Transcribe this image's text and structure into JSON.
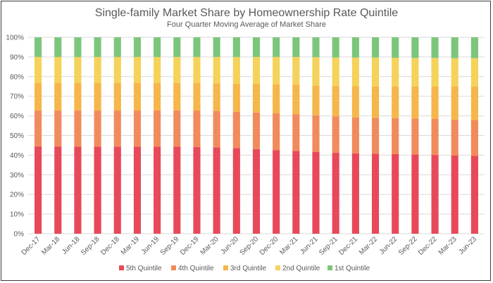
{
  "chart_data": {
    "type": "bar",
    "stacked": true,
    "title": "Single-family Market Share by Homeownership Rate Quintile",
    "subtitle": "Four Quarter Moving Average of Market Share",
    "xlabel": "",
    "ylabel": "",
    "ylim": [
      0,
      100
    ],
    "y_ticks": [
      "0%",
      "10%",
      "20%",
      "30%",
      "40%",
      "50%",
      "60%",
      "70%",
      "80%",
      "90%",
      "100%"
    ],
    "grid": true,
    "legend_position": "bottom",
    "categories": [
      "Dec-17",
      "Mar-18",
      "Jun-18",
      "Sep-18",
      "Dec-18",
      "Mar-19",
      "Jun-19",
      "Sep-19",
      "Dec-19",
      "Mar-20",
      "Jun-20",
      "Sep-20",
      "Dec-20",
      "Mar-21",
      "Jun-21",
      "Sep-21",
      "Dec-21",
      "Mar-22",
      "Jun-22",
      "Sep-22",
      "Dec-22",
      "Mar-23",
      "Jun-23"
    ],
    "series": [
      {
        "name": "5th Quintile",
        "color": "#e8495a",
        "values": [
          44.5,
          44.4,
          44.3,
          44.3,
          44.3,
          44.3,
          44.3,
          44.3,
          44.2,
          44.0,
          43.6,
          43.1,
          42.6,
          42.2,
          41.7,
          41.2,
          40.9,
          40.7,
          40.5,
          40.3,
          40.1,
          39.8,
          39.6
        ]
      },
      {
        "name": "4th Quintile",
        "color": "#f28b5c",
        "values": [
          18.3,
          18.4,
          18.4,
          18.4,
          18.4,
          18.4,
          18.5,
          18.5,
          18.5,
          18.5,
          18.5,
          18.6,
          18.7,
          18.7,
          18.6,
          18.5,
          18.3,
          18.3,
          18.4,
          18.4,
          18.4,
          18.3,
          18.3
        ]
      },
      {
        "name": "3rd Quintile",
        "color": "#f6b64a",
        "values": [
          14.0,
          14.0,
          14.0,
          14.0,
          14.0,
          14.0,
          14.0,
          14.0,
          14.0,
          14.1,
          14.3,
          14.5,
          14.7,
          14.9,
          15.2,
          15.5,
          15.9,
          16.0,
          16.1,
          16.3,
          16.4,
          16.8,
          17.0
        ]
      },
      {
        "name": "2nd Quintile",
        "color": "#f5d25a",
        "values": [
          13.2,
          13.2,
          13.3,
          13.3,
          13.3,
          13.3,
          13.2,
          13.2,
          13.3,
          13.4,
          13.6,
          13.8,
          14.0,
          14.2,
          14.4,
          14.5,
          14.6,
          14.7,
          14.6,
          14.5,
          14.6,
          14.5,
          14.5
        ]
      },
      {
        "name": "1st Quintile",
        "color": "#7cc67c",
        "values": [
          10.0,
          10.0,
          10.0,
          10.0,
          10.0,
          10.0,
          10.0,
          10.0,
          10.0,
          10.0,
          10.0,
          10.0,
          10.0,
          10.0,
          10.1,
          10.3,
          10.3,
          10.3,
          10.4,
          10.5,
          10.5,
          10.6,
          10.6
        ]
      }
    ]
  }
}
